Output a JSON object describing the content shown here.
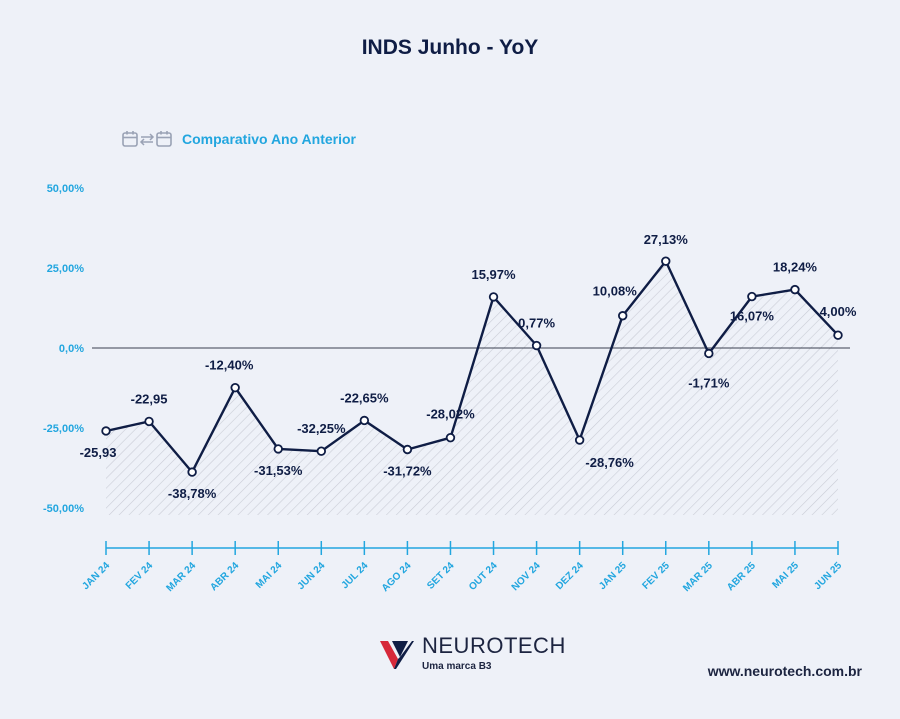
{
  "header": {
    "title": "INDS Junho - YoY",
    "subtitle": "Comparativo Ano Anterior",
    "icon": "calendar-compare-icon"
  },
  "chart_data": {
    "type": "line",
    "title": "INDS Junho - YoY",
    "subtitle": "Comparativo Ano Anterior",
    "categories": [
      "JAN 24",
      "FEV 24",
      "MAR 24",
      "ABR 24",
      "MAI 24",
      "JUN 24",
      "JUL 24",
      "AGO 24",
      "SET 24",
      "OUT 24",
      "NOV 24",
      "DEZ 24",
      "JAN 25",
      "FEV 25",
      "MAR 25",
      "ABR 25",
      "MAI 25",
      "JUN 25"
    ],
    "values": [
      -25.93,
      -22.95,
      -38.78,
      -12.4,
      -31.53,
      -32.25,
      -22.65,
      -31.72,
      -28.02,
      15.97,
      0.77,
      -28.76,
      10.08,
      27.13,
      -1.71,
      16.07,
      18.24,
      4.0
    ],
    "labels": [
      "-25,93",
      "-22,95",
      "-38,78%",
      "-12,40%",
      "-31,53%",
      "-32,25%",
      "-22,65%",
      "-31,72%",
      "-28,02%",
      "15,97%",
      "0,77%",
      "-28,76%",
      "10,08%",
      "27,13%",
      "-1,71%",
      "16,07%",
      "18,24%",
      "4,00%"
    ],
    "yticks": [
      50,
      25,
      0,
      -25,
      -50
    ],
    "ytick_labels": [
      "50,00%",
      "25,00%",
      "0,0%",
      "-25,00%",
      "-50,00%"
    ],
    "ylim": [
      -50,
      50
    ],
    "colors": {
      "line": "#0f1d45",
      "axis": "#22a6df",
      "zero": "#3a3f4f",
      "hatch": "#c9ccd6"
    }
  },
  "footer": {
    "brand": "NEUROTECH",
    "brand_tag": "Uma marca B3",
    "website": "www.neurotech.com.br",
    "logo_icon": "neurotech-logo-icon"
  }
}
